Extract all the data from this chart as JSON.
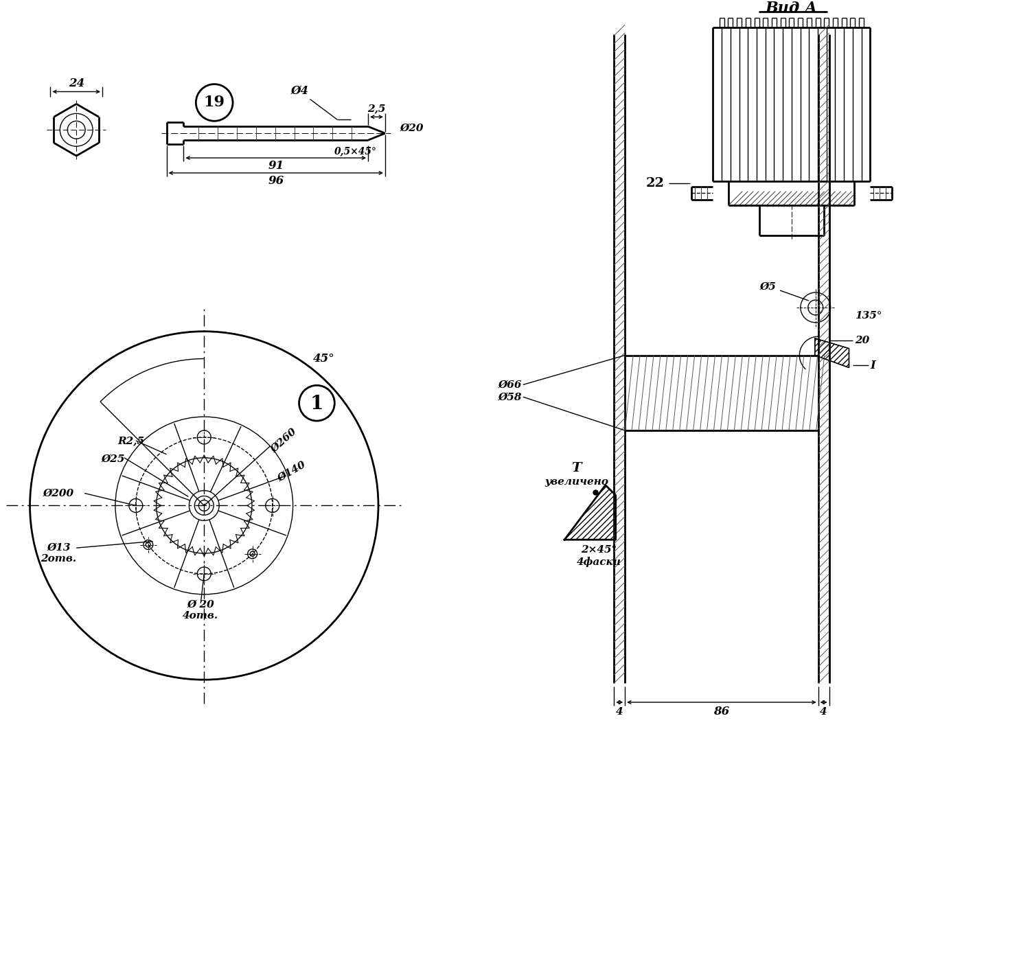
{
  "bg_color": "#ffffff",
  "line_color": "#000000",
  "vid_a_label": "Вид А",
  "part19_label": "19",
  "part1_label": "1",
  "part22_label": "22",
  "dim_24": "24",
  "dim_phi4": "Ø4",
  "dim_2_5": "2,5",
  "dim_phi20": "Ø20",
  "dim_91": "91",
  "dim_96": "96",
  "dim_chamfer": "0,5×45°",
  "dim_R25": "R2,5",
  "dim_phi25": "Ø25",
  "dim_phi140": "Ø140",
  "dim_phi260": "Ø260",
  "dim_phi200": "Ø200",
  "dim_phi13": "Ø13",
  "dim_2otv": "2отв.",
  "dim_phi20b": "Ø 20",
  "dim_4otv": "4отв.",
  "dim_45deg": "45°",
  "dim_phi5": "Ø5",
  "dim_135deg": "135°",
  "dim_phi66": "Ø66",
  "dim_phi58": "Ø58",
  "dim_T_label": "T",
  "dim_uvelicheno": "увеличено",
  "dim_2x45": "2×45°",
  "dim_4fask": "4фаски",
  "dim_4": "4",
  "dim_86": "86",
  "dim_20": "20",
  "part1_I_label": "I"
}
